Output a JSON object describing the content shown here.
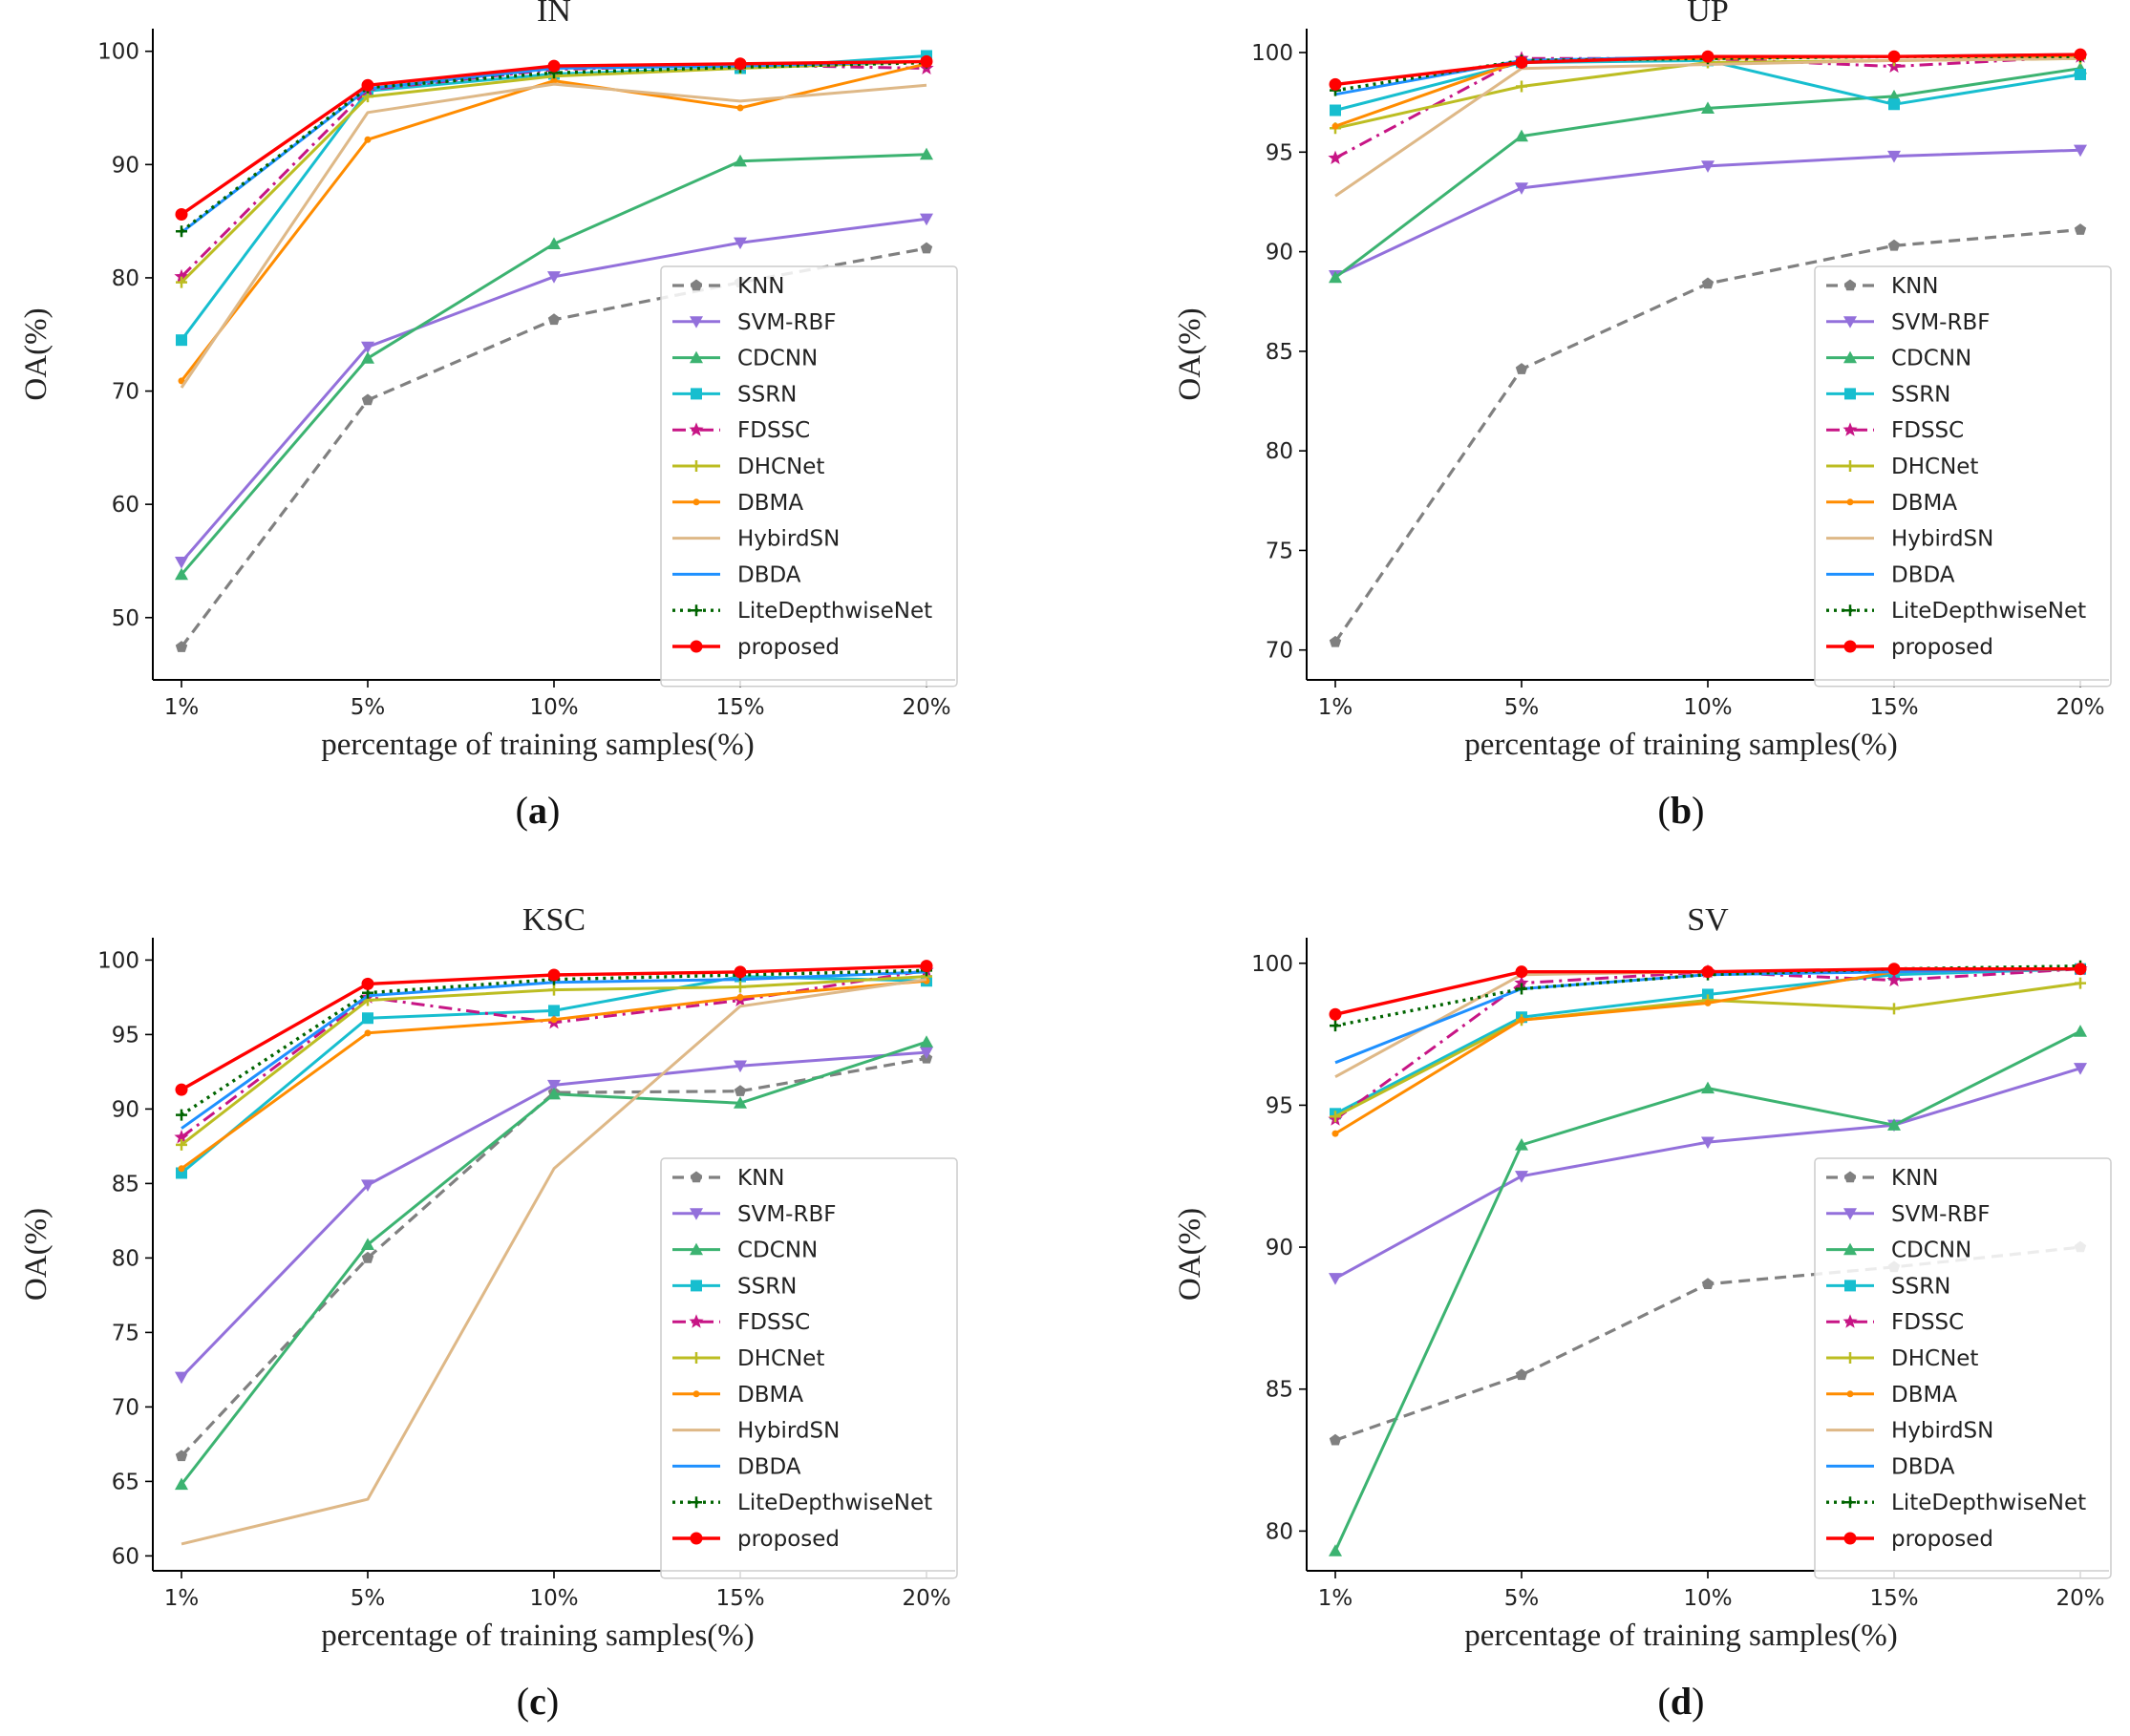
{
  "figure": {
    "colors": {
      "KNN": "#808080",
      "SVM-RBF": "#9370DB",
      "CDCNN": "#3CB371",
      "SSRN": "#17BECF",
      "FDSSC": "#C71585",
      "DHCNet": "#BCBD22",
      "DBMA": "#FF8C00",
      "HybirdSN": "#DEB887",
      "DBDA": "#1E90FF",
      "LiteDepthwiseNet": "#006400",
      "proposed": "#FF0000"
    }
  },
  "chart_data": [
    {
      "id": "a",
      "type": "line",
      "title": "IN",
      "caption": "a",
      "xlabel": "percentage of training samples(%)",
      "ylabel": "OA(%)",
      "categories": [
        "1%",
        "5%",
        "10%",
        "15%",
        "20%"
      ],
      "ylim": [
        44.5,
        102
      ],
      "yticks": [
        50,
        60,
        70,
        80,
        90,
        100
      ],
      "legend_position": "lower-right",
      "series": [
        {
          "name": "KNN",
          "values": [
            47.4,
            69.2,
            76.3,
            79.6,
            82.6
          ]
        },
        {
          "name": "SVM-RBF",
          "values": [
            54.9,
            73.9,
            80.1,
            83.1,
            85.2
          ]
        },
        {
          "name": "CDCNN",
          "values": [
            53.8,
            72.9,
            83.0,
            90.3,
            90.9
          ]
        },
        {
          "name": "SSRN",
          "values": [
            74.5,
            96.5,
            98.0,
            98.5,
            99.6
          ]
        },
        {
          "name": "FDSSC",
          "values": [
            80.1,
            96.6,
            98.4,
            98.8,
            98.5
          ]
        },
        {
          "name": "DHCNet",
          "values": [
            79.6,
            96.0,
            97.8,
            98.5,
            99.1
          ]
        },
        {
          "name": "DBMA",
          "values": [
            70.9,
            92.2,
            97.4,
            95.0,
            98.9
          ]
        },
        {
          "name": "HybirdSN",
          "values": [
            70.3,
            94.6,
            97.1,
            95.6,
            97.0
          ]
        },
        {
          "name": "DBDA",
          "values": [
            84.0,
            96.7,
            98.5,
            98.7,
            99.1
          ]
        },
        {
          "name": "LiteDepthwiseNet",
          "values": [
            84.1,
            96.8,
            98.1,
            98.6,
            99.0
          ]
        },
        {
          "name": "proposed",
          "values": [
            85.6,
            97.0,
            98.7,
            98.9,
            99.1
          ]
        }
      ]
    },
    {
      "id": "b",
      "type": "line",
      "title": "UP",
      "caption": "b",
      "xlabel": "percentage of training samples(%)",
      "ylabel": "OA(%)",
      "categories": [
        "1%",
        "5%",
        "10%",
        "15%",
        "20%"
      ],
      "ylim": [
        68.5,
        101.2
      ],
      "yticks": [
        70,
        75,
        80,
        85,
        90,
        95,
        100
      ],
      "legend_position": "lower-right",
      "series": [
        {
          "name": "KNN",
          "values": [
            70.4,
            84.1,
            88.4,
            90.3,
            91.1
          ]
        },
        {
          "name": "SVM-RBF",
          "values": [
            88.8,
            93.2,
            94.3,
            94.8,
            95.1
          ]
        },
        {
          "name": "CDCNN",
          "values": [
            88.7,
            95.8,
            97.2,
            97.8,
            99.2
          ]
        },
        {
          "name": "SSRN",
          "values": [
            97.1,
            99.5,
            99.6,
            97.4,
            98.9
          ]
        },
        {
          "name": "FDSSC",
          "values": [
            94.7,
            99.7,
            99.7,
            99.3,
            99.8
          ]
        },
        {
          "name": "DHCNet",
          "values": [
            96.2,
            98.3,
            99.5,
            99.6,
            99.7
          ]
        },
        {
          "name": "DBMA",
          "values": [
            96.3,
            99.6,
            99.7,
            99.8,
            99.8
          ]
        },
        {
          "name": "HybirdSN",
          "values": [
            92.8,
            99.2,
            99.4,
            99.6,
            99.7
          ]
        },
        {
          "name": "DBDA",
          "values": [
            97.9,
            99.6,
            99.8,
            99.8,
            99.9
          ]
        },
        {
          "name": "LiteDepthwiseNet",
          "values": [
            98.1,
            99.6,
            99.7,
            99.8,
            99.8
          ]
        },
        {
          "name": "proposed",
          "values": [
            98.4,
            99.5,
            99.8,
            99.8,
            99.9
          ]
        }
      ]
    },
    {
      "id": "c",
      "type": "line",
      "title": "KSC",
      "caption": "c",
      "xlabel": "percentage of training samples(%)",
      "ylabel": "OA(%)",
      "categories": [
        "1%",
        "5%",
        "10%",
        "15%",
        "20%"
      ],
      "ylim": [
        59,
        101.5
      ],
      "yticks": [
        60,
        65,
        70,
        75,
        80,
        85,
        90,
        95,
        100
      ],
      "legend_position": "lower-right",
      "series": [
        {
          "name": "KNN",
          "values": [
            66.7,
            80.0,
            91.1,
            91.2,
            93.4
          ]
        },
        {
          "name": "SVM-RBF",
          "values": [
            72.0,
            84.9,
            91.6,
            92.9,
            93.8
          ]
        },
        {
          "name": "CDCNN",
          "values": [
            64.8,
            80.9,
            91.0,
            90.4,
            94.5
          ]
        },
        {
          "name": "SSRN",
          "values": [
            85.7,
            96.1,
            96.6,
            98.9,
            98.6
          ]
        },
        {
          "name": "FDSSC",
          "values": [
            88.1,
            97.5,
            95.8,
            97.3,
            99.3
          ]
        },
        {
          "name": "DHCNet",
          "values": [
            87.6,
            97.3,
            98.0,
            98.2,
            98.9
          ]
        },
        {
          "name": "DBMA",
          "values": [
            86.0,
            95.1,
            96.0,
            97.5,
            98.6
          ]
        },
        {
          "name": "HybirdSN",
          "values": [
            60.8,
            63.8,
            86.0,
            96.9,
            98.7
          ]
        },
        {
          "name": "DBDA",
          "values": [
            88.7,
            97.6,
            98.5,
            98.7,
            99.2
          ]
        },
        {
          "name": "LiteDepthwiseNet",
          "values": [
            89.6,
            97.8,
            98.7,
            99.0,
            99.3
          ]
        },
        {
          "name": "proposed",
          "values": [
            91.3,
            98.4,
            99.0,
            99.2,
            99.6
          ]
        }
      ]
    },
    {
      "id": "d",
      "type": "line",
      "title": "SV",
      "caption": "d",
      "xlabel": "percentage of training samples(%)",
      "ylabel": "OA(%)",
      "categories": [
        "1%",
        "5%",
        "10%",
        "15%",
        "20%"
      ],
      "ylim": [
        78.6,
        100.9
      ],
      "yticks": [
        80,
        85,
        90,
        95,
        100
      ],
      "legend_position": "lower-right",
      "series": [
        {
          "name": "KNN",
          "values": [
            83.2,
            85.5,
            88.7,
            89.3,
            90.0
          ]
        },
        {
          "name": "SVM-RBF",
          "values": [
            88.9,
            92.5,
            93.7,
            94.3,
            96.3
          ]
        },
        {
          "name": "CDCNN",
          "values": [
            79.3,
            93.6,
            95.6,
            94.3,
            97.6
          ]
        },
        {
          "name": "SSRN",
          "values": [
            94.7,
            98.1,
            98.9,
            99.6,
            99.8
          ]
        },
        {
          "name": "FDSSC",
          "values": [
            94.5,
            99.3,
            99.7,
            99.4,
            99.8
          ]
        },
        {
          "name": "DHCNet",
          "values": [
            94.6,
            98.0,
            98.7,
            98.4,
            99.3
          ]
        },
        {
          "name": "DBMA",
          "values": [
            94.0,
            98.0,
            98.6,
            99.7,
            99.8
          ]
        },
        {
          "name": "HybirdSN",
          "values": [
            96.0,
            99.6,
            99.7,
            99.7,
            99.8
          ]
        },
        {
          "name": "DBDA",
          "values": [
            96.5,
            99.1,
            99.6,
            99.7,
            99.8
          ]
        },
        {
          "name": "LiteDepthwiseNet",
          "values": [
            97.8,
            99.1,
            99.6,
            99.8,
            99.9
          ]
        },
        {
          "name": "proposed",
          "values": [
            98.2,
            99.7,
            99.7,
            99.8,
            99.8
          ]
        }
      ]
    }
  ]
}
